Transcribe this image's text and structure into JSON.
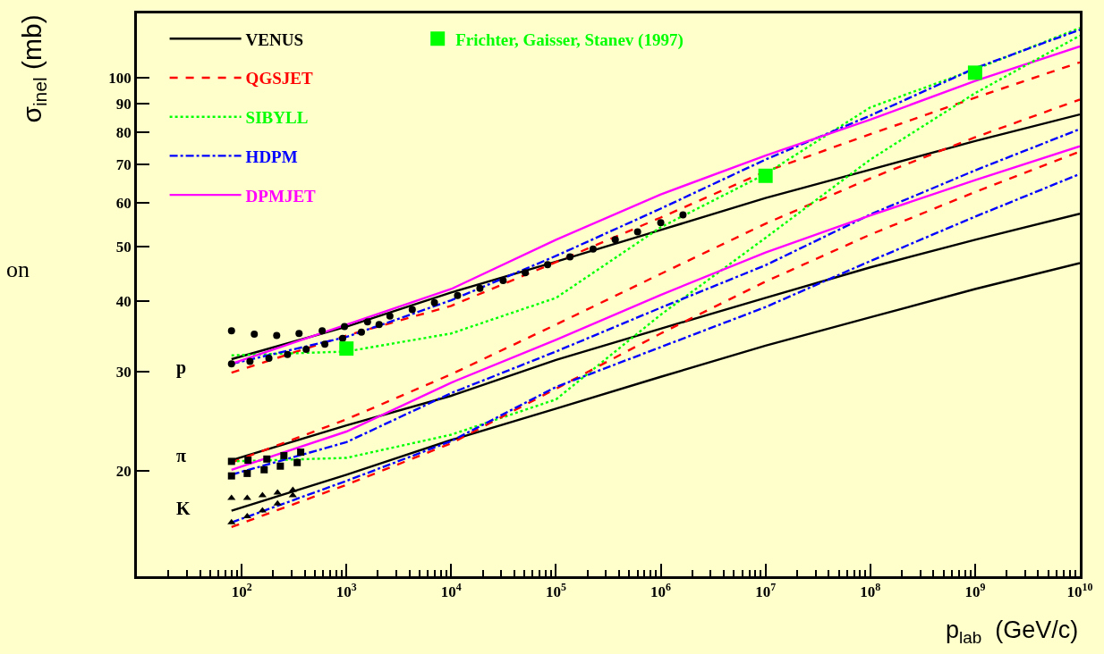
{
  "chart_data": {
    "type": "line",
    "xlabel": "p$_{lab}$  (GeV/c)",
    "ylabel": "σ$_{inel}$ (mb)",
    "log": "xy",
    "grid": false,
    "legend": "top left",
    "xlim": [
      10,
      10000000000
    ],
    "ylim": [
      13,
      130
    ],
    "xticks": [
      {
        "value": 100,
        "label": "10$^{2}$"
      },
      {
        "value": 1000,
        "label": "10$^{3}$"
      },
      {
        "value": 10000,
        "label": "10$^{4}$"
      },
      {
        "value": 100000,
        "label": "10$^{5}$"
      },
      {
        "value": 1000000,
        "label": "10$^{6}$"
      },
      {
        "value": 10000000,
        "label": "10$^{7}$"
      },
      {
        "value": 100000000,
        "label": "10$^{8}$"
      },
      {
        "value": 1000000000,
        "label": "10$^{9}$"
      },
      {
        "value": 10000000000,
        "label": "10$^{10}$"
      }
    ],
    "yticks": [
      20,
      30,
      40,
      50,
      60,
      70,
      80,
      90,
      100
    ],
    "x": [
      80,
      1000,
      10000,
      100000,
      1000000,
      10000000,
      100000000,
      1000000000,
      10000000000
    ],
    "series": [
      {
        "name": "VENUS",
        "type": "line",
        "color": "#000000",
        "line_style": "solid",
        "values": [
          31.6,
          36.1,
          41.5,
          47.1,
          53.6,
          61.1,
          68.6,
          77.1,
          86.0
        ]
      },
      {
        "name": "QGSJET",
        "type": "line",
        "color": "#ff0000",
        "line_style": "dashed",
        "values": [
          29.9,
          34.8,
          39.3,
          47.0,
          56.4,
          68.1,
          79.3,
          92.1,
          106.4
        ]
      },
      {
        "name": "SIBYLL",
        "type": "line",
        "color": "#00ff00",
        "line_style": "dotted",
        "values": [
          32.1,
          32.6,
          35.1,
          40.6,
          54.2,
          67.4,
          88.5,
          103.4,
          122.5
        ]
      },
      {
        "name": "HDPM",
        "type": "line",
        "color": "#0000ff",
        "line_style": "dashdot",
        "values": [
          31.0,
          34.6,
          40.2,
          48.2,
          58.5,
          71.5,
          85.6,
          103.9,
          121.6
        ]
      },
      {
        "name": "DPMJET",
        "type": "line",
        "color": "#ff00ff",
        "line_style": "solid",
        "values": [
          31.0,
          36.4,
          42.1,
          51.5,
          62.0,
          72.7,
          84.2,
          98.6,
          113.6
        ]
      },
      {
        "type": "line",
        "color": "#000000",
        "line_style": "solid",
        "values": [
          20.9,
          24.1,
          27.2,
          31.5,
          35.8,
          40.6,
          46.0,
          51.5,
          57.3
        ]
      },
      {
        "type": "line",
        "color": "#ff0000",
        "line_style": "dashed",
        "values": [
          20.7,
          24.7,
          29.7,
          36.4,
          44.8,
          55.0,
          66.2,
          78.3,
          91.4
        ]
      },
      {
        "type": "line",
        "color": "#00ff00",
        "line_style": "dotted",
        "values": [
          20.8,
          21.1,
          23.2,
          26.8,
          37.9,
          51.9,
          71.5,
          93.8,
          118.7
        ]
      },
      {
        "type": "line",
        "color": "#0000ff",
        "line_style": "dashdot",
        "values": [
          19.7,
          22.5,
          27.5,
          32.6,
          39.0,
          46.4,
          57.1,
          68.4,
          81.0
        ]
      },
      {
        "type": "line",
        "color": "#ff00ff",
        "line_style": "solid",
        "values": [
          20.1,
          23.5,
          28.7,
          34.2,
          41.1,
          48.9,
          56.9,
          65.7,
          75.5
        ]
      },
      {
        "type": "line",
        "color": "#000000",
        "line_style": "solid",
        "values": [
          17.0,
          19.7,
          22.7,
          25.8,
          29.4,
          33.4,
          37.5,
          42.1,
          46.8
        ]
      },
      {
        "type": "line",
        "color": "#ff0000",
        "line_style": "dashed",
        "values": [
          15.9,
          18.9,
          22.4,
          28.0,
          35.1,
          43.4,
          52.6,
          62.6,
          73.9
        ]
      },
      {
        "type": "line",
        "color": "#0000ff",
        "line_style": "dashdot",
        "values": [
          16.2,
          19.2,
          22.6,
          28.2,
          33.2,
          39.1,
          47.2,
          56.6,
          67.4
        ]
      },
      {
        "type": "scatter",
        "color": "#000000",
        "marker": "circle",
        "x": [
          80,
          132,
          216,
          353,
          587,
          958,
          2600,
          4250,
          80,
          120,
          182,
          274,
          413,
          622,
          920,
          1390,
          1590,
          2050,
          6920,
          11500,
          18800,
          31300,
          50900,
          83200,
          136000,
          226000,
          368000,
          601000,
          1000000,
          1630000
        ],
        "values": [
          35.5,
          35.0,
          34.8,
          35.1,
          35.5,
          36.1,
          37.7,
          38.7,
          31.0,
          31.3,
          31.7,
          32.2,
          32.9,
          33.6,
          34.4,
          35.3,
          36.8,
          36.4,
          39.8,
          41.0,
          42.2,
          43.6,
          45.0,
          46.5,
          48.0,
          49.6,
          51.5,
          53.2,
          55.2,
          57.0
        ]
      },
      {
        "type": "scatter",
        "color": "#000000",
        "marker": "square",
        "x": [
          80,
          115,
          174,
          253,
          366,
          80,
          113,
          164,
          234,
          339
        ],
        "values": [
          20.8,
          20.9,
          21.0,
          21.3,
          21.6,
          19.6,
          19.8,
          20.1,
          20.4,
          20.7
        ]
      },
      {
        "type": "scatter",
        "color": "#000000",
        "marker": "triangle",
        "x": [
          80,
          113,
          158,
          220,
          308,
          80,
          113,
          158,
          220,
          308
        ],
        "values": [
          17.9,
          17.9,
          18.1,
          18.3,
          18.5,
          16.2,
          16.6,
          17.0,
          17.5,
          18.1
        ]
      },
      {
        "name": "Frichter, Gaisser, Stanev (1997)",
        "type": "scatter",
        "color": "#00ff00",
        "marker": "square",
        "x": [
          1000,
          10000000,
          1000000000
        ],
        "values": [
          33.0,
          66.9,
          102
        ]
      }
    ],
    "annotations": [
      "p",
      "π",
      "K",
      "on"
    ]
  }
}
